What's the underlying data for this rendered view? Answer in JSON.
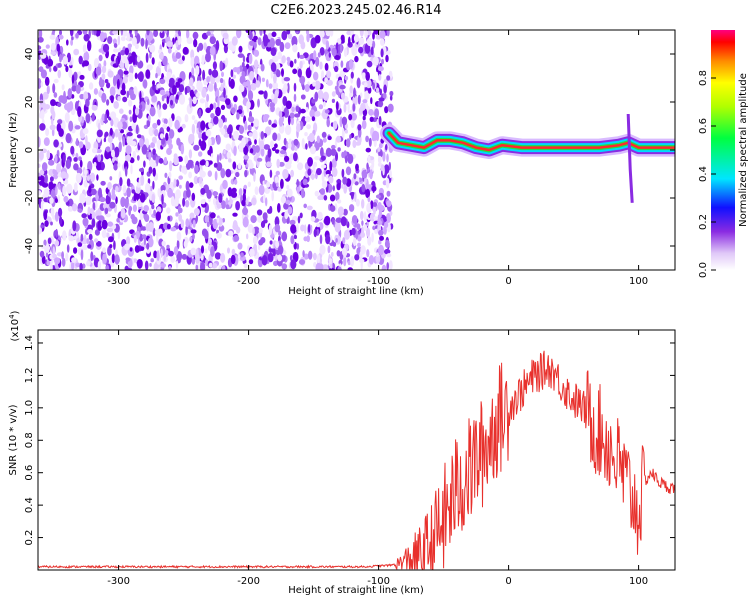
{
  "title": "C2E6.2023.245.02.46.R14",
  "chart_data": [
    {
      "type": "heatmap",
      "xlabel": "Height of straight line (km)",
      "ylabel": "Frequency (Hz)",
      "xlim": [
        -362,
        128
      ],
      "ylim": [
        -50,
        50
      ],
      "xticks": [
        -300,
        -200,
        -100,
        0,
        100
      ],
      "yticks": [
        -40,
        -20,
        0,
        20,
        40
      ],
      "noise_region_x": [
        -362,
        -90
      ],
      "signal_trace": {
        "x": [
          -92,
          -85,
          -75,
          -65,
          -55,
          -45,
          -35,
          -25,
          -15,
          -5,
          10,
          30,
          50,
          70,
          85,
          92,
          100,
          128
        ],
        "y": [
          7,
          3,
          2,
          1,
          4,
          4,
          3,
          1,
          0,
          2,
          1,
          1,
          1,
          1,
          2,
          3,
          1,
          1
        ]
      },
      "colorbar": {
        "label": "Normalized spectral amplitude",
        "ticks": [
          "0.0",
          "0.2",
          "0.4",
          "0.6",
          "0.8"
        ],
        "range": [
          0,
          1
        ]
      }
    },
    {
      "type": "line",
      "xlabel": "Height of straight line (km)",
      "ylabel": "SNR (10 * v/v)",
      "yscale_label": "(x10",
      "yscale_exp": "4",
      "yscale_close": ")",
      "xlim": [
        -362,
        128
      ],
      "ylim": [
        0,
        1.48
      ],
      "xticks": [
        -300,
        -200,
        -100,
        0,
        100
      ],
      "yticks": [
        "0.2",
        "0.4",
        "0.6",
        "0.8",
        "1.0",
        "1.2",
        "1.4"
      ],
      "color": "#e8302c",
      "series": [
        {
          "x": [
            -362,
            -300,
            -200,
            -110,
            -90,
            -80,
            -70,
            -60,
            -50,
            -45,
            -40,
            -35,
            -30,
            -25,
            -20,
            -15,
            -10,
            -5,
            0,
            5,
            10,
            15,
            20,
            25,
            30,
            35,
            40,
            45,
            50,
            55,
            60,
            65,
            70,
            75,
            80,
            85,
            90,
            95,
            100,
            105,
            110,
            115,
            120,
            128
          ],
          "values": [
            0.02,
            0.02,
            0.02,
            0.02,
            0.03,
            0.05,
            0.08,
            0.15,
            0.3,
            0.4,
            0.5,
            0.55,
            0.6,
            0.68,
            0.72,
            0.8,
            0.9,
            0.95,
            1.0,
            1.05,
            1.1,
            1.15,
            1.2,
            1.22,
            1.25,
            1.22,
            1.15,
            1.1,
            1.05,
            1.02,
            0.97,
            0.9,
            0.85,
            0.8,
            0.72,
            0.65,
            0.55,
            0.45,
            0.35,
            0.55,
            0.6,
            0.55,
            0.52,
            0.5
          ]
        }
      ]
    }
  ]
}
